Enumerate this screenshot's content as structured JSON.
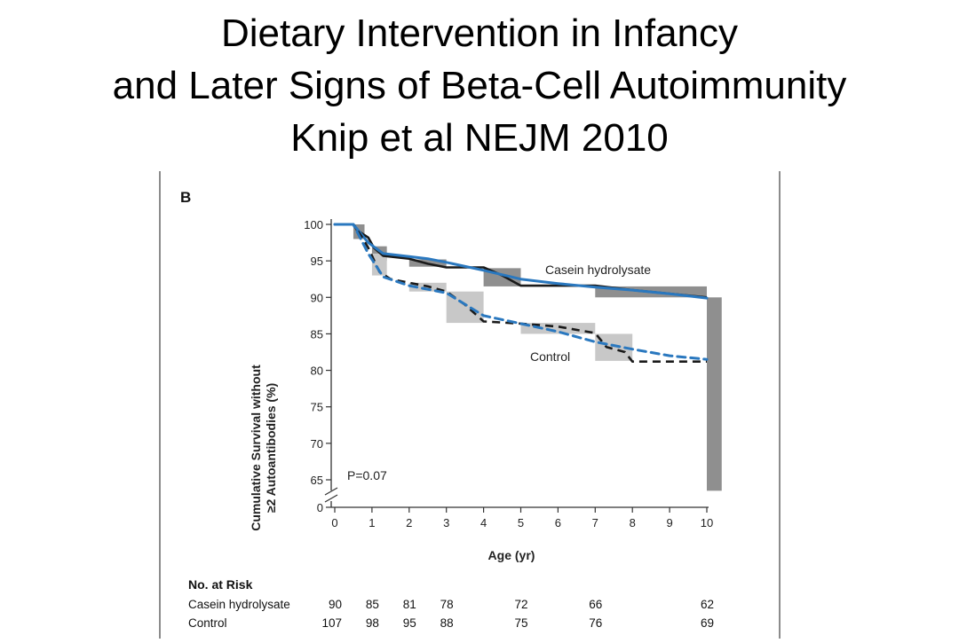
{
  "slide": {
    "title_lines": [
      "Dietary Intervention in Infancy",
      "and Later Signs of Beta-Cell Autoimmunity",
      "Knip et al NEJM 2010"
    ]
  },
  "chart_data": {
    "type": "line",
    "panel_label": "B",
    "xlabel": "Age (yr)",
    "ylabel_lines": [
      "Cumulative Survival without",
      "≥2 Autoantibodies (%)"
    ],
    "x_ticks": [
      0,
      1,
      2,
      3,
      4,
      5,
      6,
      7,
      8,
      9,
      10
    ],
    "y_ticks": [
      100,
      95,
      90,
      85,
      80,
      75,
      70,
      65
    ],
    "y_zero_label": "0",
    "xlim": [
      0,
      10
    ],
    "ylim_display": [
      63,
      100
    ],
    "axis_break": true,
    "annotation_p": "P=0.07",
    "colors": {
      "km": "#1a1a1a",
      "model": "#2a78bf",
      "ci": "#c8c8c8",
      "ci_dark": "#8f8f8f"
    },
    "series": [
      {
        "name": "Casein hydrolysate",
        "style": "solid",
        "km": [
          [
            0,
            100
          ],
          [
            0.5,
            100
          ],
          [
            0.6,
            99.2
          ],
          [
            0.9,
            98.2
          ],
          [
            1.05,
            96.8
          ],
          [
            1.3,
            95.7
          ],
          [
            2,
            95.3
          ],
          [
            2.5,
            94.6
          ],
          [
            3,
            94.1
          ],
          [
            4,
            94.1
          ],
          [
            4.5,
            93
          ],
          [
            5,
            91.6
          ],
          [
            7,
            91.6
          ],
          [
            8,
            91
          ],
          [
            10,
            90
          ]
        ],
        "smooth": [
          [
            0,
            100
          ],
          [
            0.5,
            100
          ],
          [
            0.9,
            97.5
          ],
          [
            1.3,
            96
          ],
          [
            2,
            95.6
          ],
          [
            2.5,
            95.3
          ],
          [
            3,
            94.8
          ],
          [
            4,
            93.7
          ],
          [
            5,
            92.5
          ],
          [
            6,
            91.9
          ],
          [
            7,
            91.4
          ],
          [
            8,
            91
          ],
          [
            9,
            90.5
          ],
          [
            10,
            89.9
          ]
        ],
        "ci_boxes": [
          {
            "x": [
              0.5,
              0.8
            ],
            "y": [
              98,
              100
            ],
            "shade": "dark"
          },
          {
            "x": [
              1.0,
              1.4
            ],
            "y": [
              95,
              97
            ],
            "shade": "dark"
          },
          {
            "x": [
              2.0,
              3.0
            ],
            "y": [
              94.2,
              95.2
            ],
            "shade": "dark"
          },
          {
            "x": [
              4.0,
              5.0
            ],
            "y": [
              91.5,
              94
            ],
            "shade": "dark"
          },
          {
            "x": [
              7.0,
              10.0
            ],
            "y": [
              90,
              91.5
            ],
            "shade": "dark"
          },
          {
            "x": [
              10.0,
              10.4
            ],
            "y": [
              63.5,
              90
            ],
            "shade": "dark"
          }
        ]
      },
      {
        "name": "Control",
        "style": "dashed",
        "km": [
          [
            0,
            100
          ],
          [
            0.5,
            100
          ],
          [
            0.7,
            98.5
          ],
          [
            0.9,
            96.8
          ],
          [
            1.2,
            93.5
          ],
          [
            1.5,
            92.5
          ],
          [
            2,
            92
          ],
          [
            2.5,
            91.5
          ],
          [
            3,
            90.8
          ],
          [
            3.5,
            89
          ],
          [
            4,
            86.7
          ],
          [
            5,
            86.4
          ],
          [
            6,
            86
          ],
          [
            7,
            85.1
          ],
          [
            7.3,
            83.2
          ],
          [
            7.8,
            82.5
          ],
          [
            8,
            81.2
          ],
          [
            10,
            81.2
          ]
        ],
        "smooth": [
          [
            0,
            100
          ],
          [
            0.5,
            100
          ],
          [
            0.9,
            96
          ],
          [
            1.3,
            92.8
          ],
          [
            2,
            91.6
          ],
          [
            3,
            90.6
          ],
          [
            4,
            87.5
          ],
          [
            5,
            86.4
          ],
          [
            6,
            85.3
          ],
          [
            7,
            83.9
          ],
          [
            8,
            82.9
          ],
          [
            9,
            82
          ],
          [
            10,
            81.5
          ]
        ],
        "ci_boxes": [
          {
            "x": [
              1.0,
              1.4
            ],
            "y": [
              93,
              96
            ],
            "shade": "light"
          },
          {
            "x": [
              2.0,
              3.0
            ],
            "y": [
              90.8,
              92
            ],
            "shade": "light"
          },
          {
            "x": [
              3.0,
              4.0
            ],
            "y": [
              86.5,
              90.8
            ],
            "shade": "light"
          },
          {
            "x": [
              5.0,
              7.0
            ],
            "y": [
              85,
              86.5
            ],
            "shade": "light"
          },
          {
            "x": [
              7.0,
              8.0
            ],
            "y": [
              81.3,
              85
            ],
            "shade": "light"
          }
        ]
      }
    ],
    "risk_table": {
      "header": "No. at Risk",
      "timepoints": [
        0,
        1,
        2,
        3,
        5,
        7,
        10
      ],
      "rows": [
        {
          "label": "Casein hydrolysate",
          "values": [
            "90",
            "85",
            "81",
            "78",
            "72",
            "66",
            "62"
          ]
        },
        {
          "label": "Control",
          "values": [
            "107",
            "98",
            "95",
            "88",
            "75",
            "76",
            "69"
          ]
        }
      ]
    }
  }
}
